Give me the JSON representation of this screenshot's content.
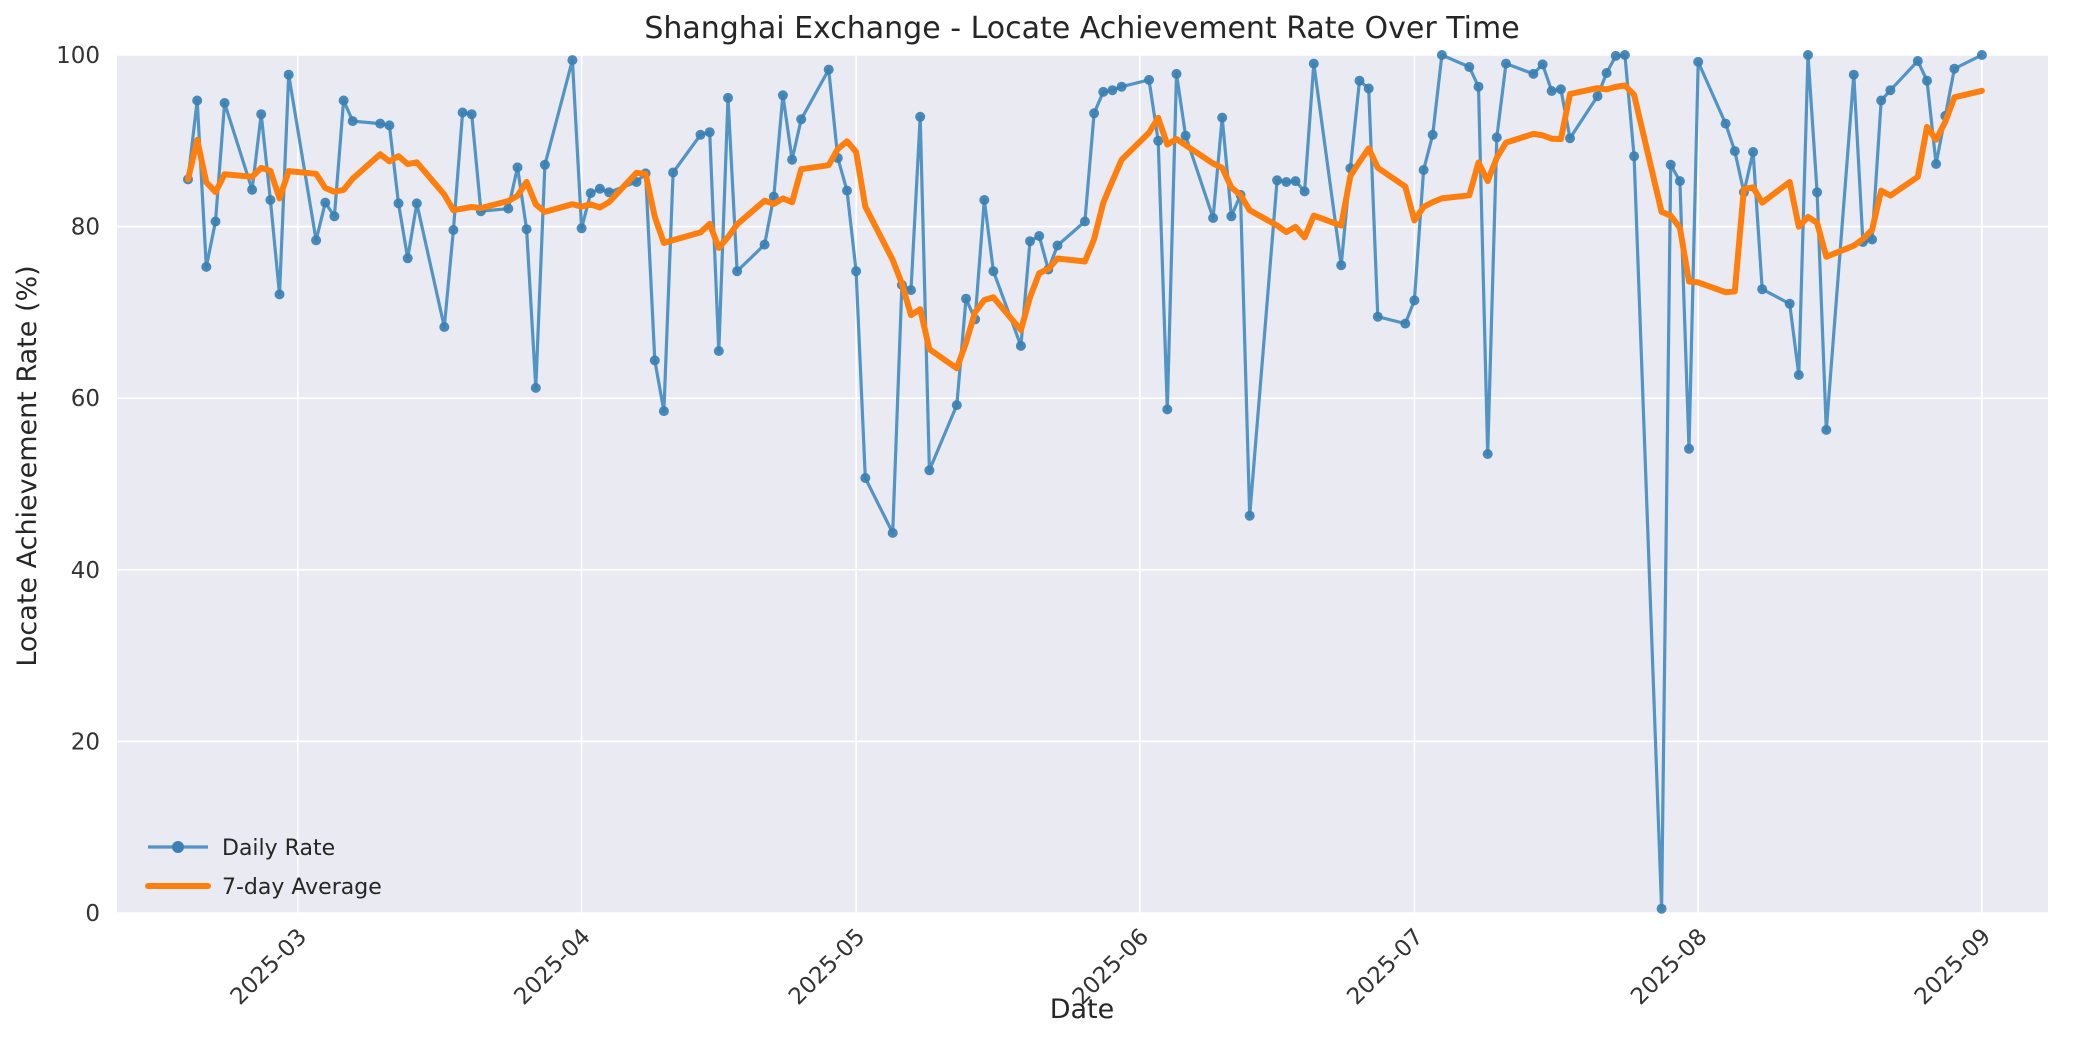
{
  "figure": {
    "title": "Shanghai Exchange - Locate Achievement Rate Over Time",
    "xlabel": "Date",
    "ylabel": "Locate Achievement Rate (%)"
  },
  "legend": {
    "position": "lower left",
    "items": [
      {
        "label": "Daily Rate",
        "color": "#5294c3",
        "marker": "circle"
      },
      {
        "label": "7-day Average",
        "color": "#ff7f0e",
        "marker": "line"
      }
    ]
  },
  "colors": {
    "plot_background": "#eaeaf2",
    "grid": "#ffffff",
    "daily_line": "#5294c3",
    "daily_marker": "#3a80b2",
    "average_line": "#ff7f0e",
    "text": "#262626"
  },
  "axes": {
    "ylim": [
      0,
      100
    ],
    "y_ticks": [
      0,
      20,
      40,
      60,
      80,
      100
    ],
    "x_ticks": [
      {
        "date": "2025-03-01",
        "label": "2025-03"
      },
      {
        "date": "2025-04-01",
        "label": "2025-04"
      },
      {
        "date": "2025-05-01",
        "label": "2025-05"
      },
      {
        "date": "2025-06-01",
        "label": "2025-06"
      },
      {
        "date": "2025-07-01",
        "label": "2025-07"
      },
      {
        "date": "2025-08-01",
        "label": "2025-08"
      },
      {
        "date": "2025-09-01",
        "label": "2025-09"
      }
    ]
  },
  "chart_data": {
    "type": "line",
    "title": "Shanghai Exchange - Locate Achievement Rate Over Time",
    "xlabel": "Date",
    "ylabel": "Locate Achievement Rate (%)",
    "ylim": [
      0,
      100
    ],
    "grid": true,
    "legend_position": "lower left",
    "x": [
      "2025-02-17",
      "2025-02-18",
      "2025-02-19",
      "2025-02-20",
      "2025-02-21",
      "2025-02-24",
      "2025-02-25",
      "2025-02-26",
      "2025-02-27",
      "2025-02-28",
      "2025-03-03",
      "2025-03-04",
      "2025-03-05",
      "2025-03-06",
      "2025-03-07",
      "2025-03-10",
      "2025-03-11",
      "2025-03-12",
      "2025-03-13",
      "2025-03-14",
      "2025-03-17",
      "2025-03-18",
      "2025-03-19",
      "2025-03-20",
      "2025-03-21",
      "2025-03-24",
      "2025-03-25",
      "2025-03-26",
      "2025-03-27",
      "2025-03-28",
      "2025-03-31",
      "2025-04-01",
      "2025-04-02",
      "2025-04-03",
      "2025-04-04",
      "2025-04-07",
      "2025-04-08",
      "2025-04-09",
      "2025-04-10",
      "2025-04-11",
      "2025-04-14",
      "2025-04-15",
      "2025-04-16",
      "2025-04-17",
      "2025-04-18",
      "2025-04-21",
      "2025-04-22",
      "2025-04-23",
      "2025-04-24",
      "2025-04-25",
      "2025-04-28",
      "2025-04-29",
      "2025-04-30",
      "2025-05-01",
      "2025-05-02",
      "2025-05-05",
      "2025-05-06",
      "2025-05-07",
      "2025-05-08",
      "2025-05-09",
      "2025-05-12",
      "2025-05-13",
      "2025-05-14",
      "2025-05-15",
      "2025-05-16",
      "2025-05-19",
      "2025-05-20",
      "2025-05-21",
      "2025-05-22",
      "2025-05-23",
      "2025-05-26",
      "2025-05-27",
      "2025-05-28",
      "2025-05-29",
      "2025-05-30",
      "2025-06-02",
      "2025-06-03",
      "2025-06-04",
      "2025-06-05",
      "2025-06-06",
      "2025-06-09",
      "2025-06-10",
      "2025-06-11",
      "2025-06-12",
      "2025-06-13",
      "2025-06-16",
      "2025-06-17",
      "2025-06-18",
      "2025-06-19",
      "2025-06-20",
      "2025-06-23",
      "2025-06-24",
      "2025-06-25",
      "2025-06-26",
      "2025-06-27",
      "2025-06-30",
      "2025-07-01",
      "2025-07-02",
      "2025-07-03",
      "2025-07-04",
      "2025-07-07",
      "2025-07-08",
      "2025-07-09",
      "2025-07-10",
      "2025-07-11",
      "2025-07-14",
      "2025-07-15",
      "2025-07-16",
      "2025-07-17",
      "2025-07-18",
      "2025-07-21",
      "2025-07-22",
      "2025-07-23",
      "2025-07-24",
      "2025-07-25",
      "2025-07-28",
      "2025-07-29",
      "2025-07-30",
      "2025-07-31",
      "2025-08-01",
      "2025-08-04",
      "2025-08-05",
      "2025-08-06",
      "2025-08-07",
      "2025-08-08",
      "2025-08-11",
      "2025-08-12",
      "2025-08-13",
      "2025-08-14",
      "2025-08-15",
      "2025-08-18",
      "2025-08-19",
      "2025-08-20",
      "2025-08-21",
      "2025-08-22",
      "2025-08-25",
      "2025-08-26",
      "2025-08-27",
      "2025-08-28",
      "2025-08-29",
      "2025-09-01"
    ],
    "series": [
      {
        "name": "Daily Rate",
        "values": [
          85.5,
          94.7,
          75.3,
          80.6,
          94.4,
          84.3,
          93.1,
          83.1,
          72.1,
          97.7,
          78.4,
          82.8,
          81.2,
          94.7,
          92.3,
          92.0,
          91.8,
          82.7,
          76.3,
          82.7,
          68.3,
          79.6,
          93.3,
          93.1,
          81.8,
          82.1,
          86.9,
          79.7,
          61.2,
          87.2,
          99.4,
          79.8,
          83.9,
          84.4,
          84.0,
          85.2,
          86.2,
          64.4,
          58.5,
          86.3,
          90.7,
          91.0,
          65.5,
          95.0,
          74.8,
          77.9,
          83.5,
          95.3,
          87.8,
          92.5,
          98.3,
          88.0,
          84.2,
          74.8,
          50.7,
          44.3,
          73.2,
          72.6,
          92.8,
          51.6,
          59.2,
          71.6,
          69.2,
          83.1,
          74.8,
          66.1,
          78.3,
          78.9,
          75.0,
          77.8,
          80.6,
          93.2,
          95.7,
          95.9,
          96.3,
          97.1,
          90.0,
          58.7,
          97.8,
          90.6,
          81.0,
          92.7,
          81.2,
          83.7,
          46.3,
          85.4,
          85.2,
          85.3,
          84.1,
          99.0,
          75.5,
          86.8,
          97.0,
          96.1,
          69.5,
          68.7,
          71.4,
          86.6,
          90.7,
          100.0,
          98.6,
          96.3,
          53.5,
          90.4,
          99.0,
          97.8,
          98.9,
          95.8,
          96.0,
          90.3,
          95.2,
          97.9,
          99.9,
          100.0,
          88.2,
          0.5,
          87.2,
          85.3,
          54.1,
          99.2,
          92.0,
          88.8,
          84.0,
          88.7,
          72.7,
          71.0,
          62.7,
          100.0,
          84.0,
          56.3,
          97.7,
          78.2,
          78.5,
          94.7,
          95.9,
          99.3,
          97.0,
          87.3,
          92.9,
          98.4,
          100.0
        ]
      },
      {
        "name": "7-day Average",
        "derived_from": "Daily Rate",
        "derivation": "rolling_mean",
        "window": 7
      }
    ]
  }
}
